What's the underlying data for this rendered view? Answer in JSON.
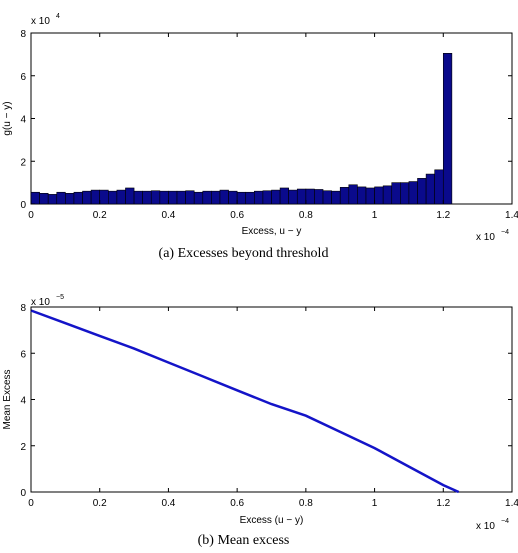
{
  "chart_data": [
    {
      "type": "bar",
      "caption": "(a) Excesses beyond threshold",
      "xlabel": "Excess, u − y",
      "ylabel": "g(u − y)",
      "x_multiplier": "x 10",
      "x_exponent": "−4",
      "y_multiplier": "x 10",
      "y_exponent": "4",
      "xlim": [
        0,
        1.4
      ],
      "ylim": [
        0,
        8
      ],
      "xticks": [
        "0",
        "0.2",
        "0.4",
        "0.6",
        "0.8",
        "1",
        "1.2",
        "1.4"
      ],
      "yticks": [
        "0",
        "2",
        "4",
        "6",
        "8"
      ],
      "bar_color": "#0a0a8c",
      "bin_width": 0.025,
      "x": [
        0.0125,
        0.0375,
        0.0625,
        0.0875,
        0.1125,
        0.1375,
        0.1625,
        0.1875,
        0.2125,
        0.2375,
        0.2625,
        0.2875,
        0.3125,
        0.3375,
        0.3625,
        0.3875,
        0.4125,
        0.4375,
        0.4625,
        0.4875,
        0.5125,
        0.5375,
        0.5625,
        0.5875,
        0.6125,
        0.6375,
        0.6625,
        0.6875,
        0.7125,
        0.7375,
        0.7625,
        0.7875,
        0.8125,
        0.8375,
        0.8625,
        0.8875,
        0.9125,
        0.9375,
        0.9625,
        0.9875,
        1.0125,
        1.0375,
        1.0625,
        1.0875,
        1.1125,
        1.1375,
        1.1625,
        1.1875,
        1.2125,
        1.2375
      ],
      "values": [
        0.55,
        0.5,
        0.45,
        0.55,
        0.5,
        0.55,
        0.6,
        0.65,
        0.65,
        0.6,
        0.65,
        0.75,
        0.6,
        0.6,
        0.62,
        0.6,
        0.6,
        0.6,
        0.62,
        0.55,
        0.6,
        0.6,
        0.65,
        0.6,
        0.55,
        0.55,
        0.6,
        0.62,
        0.65,
        0.75,
        0.65,
        0.7,
        0.7,
        0.68,
        0.62,
        0.6,
        0.78,
        0.9,
        0.8,
        0.75,
        0.8,
        0.85,
        1.0,
        1.0,
        1.05,
        1.2,
        1.4,
        1.6,
        7.05,
        0.0
      ]
    },
    {
      "type": "line",
      "caption": "(b) Mean excess",
      "xlabel": "Excess (u − y)",
      "ylabel": "Mean Excess",
      "x_multiplier": "x 10",
      "x_exponent": "−4",
      "y_multiplier": "x 10",
      "y_exponent": "−5",
      "xlim": [
        0,
        1.4
      ],
      "ylim": [
        0,
        8
      ],
      "xticks": [
        "0",
        "0.2",
        "0.4",
        "0.6",
        "0.8",
        "1",
        "1.2",
        "1.4"
      ],
      "yticks": [
        "0",
        "2",
        "4",
        "6",
        "8"
      ],
      "line_color": "#1414c8",
      "x": [
        0,
        0.1,
        0.2,
        0.3,
        0.4,
        0.5,
        0.6,
        0.7,
        0.8,
        0.9,
        1.0,
        1.1,
        1.2,
        1.245
      ],
      "y": [
        7.85,
        7.3,
        6.75,
        6.2,
        5.6,
        5.0,
        4.4,
        3.8,
        3.3,
        2.6,
        1.9,
        1.1,
        0.3,
        0.0
      ]
    }
  ]
}
